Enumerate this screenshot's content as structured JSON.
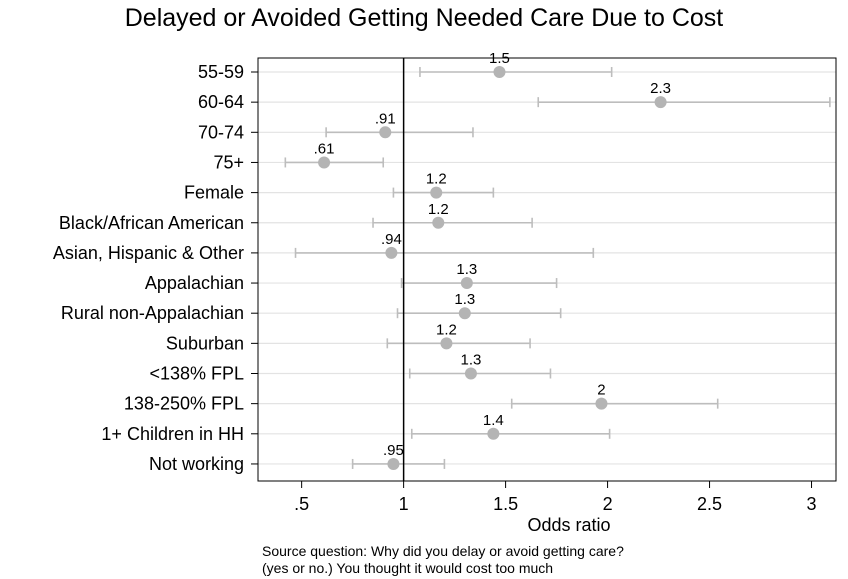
{
  "chart_data": {
    "type": "scatter",
    "title": "Delayed or Avoided Getting Needed Care Due to Cost",
    "xlabel": "Odds ratio",
    "ylabel": "",
    "xlim": [
      0.0,
      3.0
    ],
    "x_ticks": [
      ".5",
      "1",
      "1.5",
      "2",
      "2.5",
      "3"
    ],
    "x_tick_values": [
      0.5,
      1,
      1.5,
      2,
      2.5,
      3
    ],
    "reference_line": 1,
    "grid": "horizontal",
    "series": [
      {
        "points": [
          {
            "label": "55-59",
            "value": 1.47,
            "value_label": "1.5",
            "ci_low": 1.08,
            "ci_high": 2.02
          },
          {
            "label": "60-64",
            "value": 2.26,
            "value_label": "2.3",
            "ci_low": 1.66,
            "ci_high": 3.09
          },
          {
            "label": "70-74",
            "value": 0.91,
            "value_label": ".91",
            "ci_low": 0.62,
            "ci_high": 1.34
          },
          {
            "label": "75+",
            "value": 0.61,
            "value_label": ".61",
            "ci_low": 0.42,
            "ci_high": 0.9
          },
          {
            "label": "Female",
            "value": 1.16,
            "value_label": "1.2",
            "ci_low": 0.95,
            "ci_high": 1.44
          },
          {
            "label": "Black/African American",
            "value": 1.17,
            "value_label": "1.2",
            "ci_low": 0.85,
            "ci_high": 1.63
          },
          {
            "label": "Asian, Hispanic & Other",
            "value": 0.94,
            "value_label": ".94",
            "ci_low": 0.47,
            "ci_high": 1.93
          },
          {
            "label": "Appalachian",
            "value": 1.31,
            "value_label": "1.3",
            "ci_low": 0.99,
            "ci_high": 1.75
          },
          {
            "label": "Rural non-Appalachian",
            "value": 1.3,
            "value_label": "1.3",
            "ci_low": 0.97,
            "ci_high": 1.77
          },
          {
            "label": "Suburban",
            "value": 1.21,
            "value_label": "1.2",
            "ci_low": 0.92,
            "ci_high": 1.62
          },
          {
            "label": "<138% FPL",
            "value": 1.33,
            "value_label": "1.3",
            "ci_low": 1.03,
            "ci_high": 1.72
          },
          {
            "label": "138-250% FPL",
            "value": 1.97,
            "value_label": "2",
            "ci_low": 1.53,
            "ci_high": 2.54
          },
          {
            "label": "1+ Children in HH",
            "value": 1.44,
            "value_label": "1.4",
            "ci_low": 1.04,
            "ci_high": 2.01
          },
          {
            "label": "Not working",
            "value": 0.95,
            "value_label": ".95",
            "ci_low": 0.75,
            "ci_high": 1.2
          }
        ]
      }
    ]
  },
  "source_note": [
    "Source question: Why did you delay or avoid getting care?",
    "(yes or no.) You thought it would cost too much"
  ],
  "colors": {
    "marker": "#b4b4b4",
    "ci_line": "#bdbdbd",
    "grid": "#e3e3e3",
    "axis": "#000000",
    "reference": "#000000"
  }
}
